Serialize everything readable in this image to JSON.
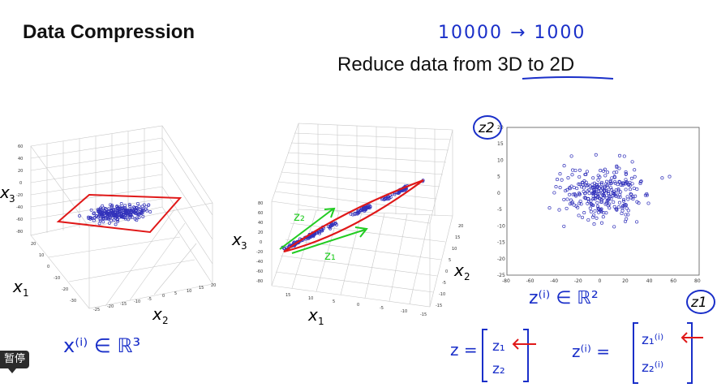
{
  "slide": {
    "title": "Data Compression",
    "subtitle": "Reduce data from 3D to 2D",
    "note_top": "10000 → 1000"
  },
  "plot3d_left": {
    "axis_x1": "x",
    "axis_x1_sub": "1",
    "axis_x2": "x",
    "axis_x2_sub": "2",
    "axis_x3": "x",
    "axis_x3_sub": "3",
    "z_ticks": [
      "60",
      "40",
      "20",
      "0",
      "-20",
      "-40",
      "-60",
      "-80"
    ],
    "x1_ticks": [
      "20",
      "10",
      "0",
      "-10",
      "-20",
      "-30"
    ],
    "x2_ticks": [
      "-25",
      "-20",
      "-15",
      "-10",
      "-5",
      "0",
      "5",
      "10",
      "15",
      "20"
    ],
    "annotation": "x⁽ⁱ⁾ ∈ ℝ³"
  },
  "plot3d_middle": {
    "axis_x1": "x",
    "axis_x1_sub": "1",
    "axis_x2": "x",
    "axis_x2_sub": "2",
    "axis_x3": "x",
    "axis_x3_sub": "3",
    "z_ticks": [
      "80",
      "60",
      "40",
      "20",
      "0",
      "-20",
      "-40",
      "-60",
      "-80"
    ],
    "x1_ticks": [
      "15",
      "10",
      "5",
      "0",
      "-5",
      "-10",
      "-15"
    ],
    "x2_ticks": [
      "20",
      "15",
      "10",
      "5",
      "0",
      "-5",
      "-10",
      "-15"
    ],
    "arrow_label_1": "z₂",
    "arrow_label_2": "z₁"
  },
  "chart_data": {
    "type": "scatter",
    "title": "",
    "xlabel": "z1",
    "ylabel": "z2",
    "xlim": [
      -80,
      80
    ],
    "ylim": [
      -25,
      20
    ],
    "xticks": [
      -80,
      -60,
      -40,
      -20,
      0,
      20,
      40,
      60,
      80
    ],
    "yticks": [
      20,
      15,
      10,
      5,
      0,
      -5,
      -10,
      -15,
      -20,
      -25
    ],
    "annotation": "z⁽ⁱ⁾ ∈ ℝ²"
  },
  "formulas": {
    "z_lhs": "z =",
    "z_top": "z₁",
    "z_bottom": "z₂",
    "zi_lhs": "z⁽ⁱ⁾ =",
    "zi_top": "z₁⁽ⁱ⁾",
    "zi_bottom": "z₂⁽ⁱ⁾"
  },
  "player": {
    "pause_label": "暂停"
  }
}
